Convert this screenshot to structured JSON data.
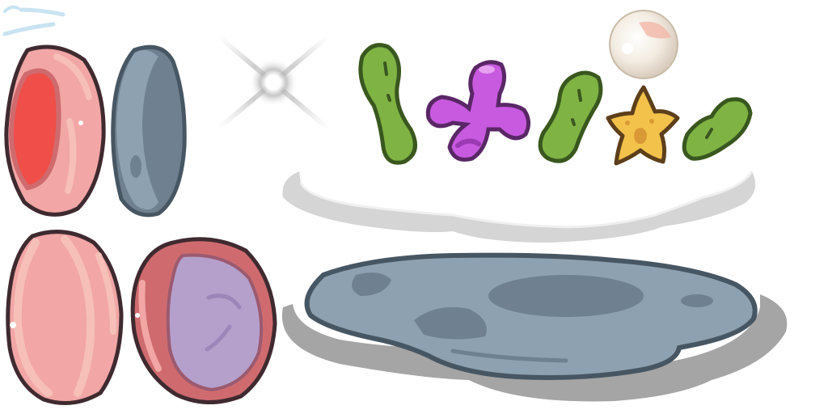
{
  "sprite_sheet": {
    "background_color": "#ffffff",
    "outline_color": "#3f2a2f",
    "palette": {
      "shell_pink": "#f2a6a6",
      "shell_pink_light": "#f6c0b8",
      "shell_pink_dark": "#cf6b6f",
      "shell_inner_red": "#f04e48",
      "shell_inner_lavender": "#b5a0cc",
      "stone_gray": "#8da1b0",
      "stone_gray_dark": "#6f8190",
      "stone_outline": "#475663",
      "kelp_green": "#7fb344",
      "kelp_outline": "#39571f",
      "coral_purple": "#c85ae0",
      "coral_outline": "#5a2766",
      "starfish_yellow": "#f3c24a",
      "starfish_outline": "#5d3f1b",
      "pearl": "#f3ece2",
      "shadow_gray": "#d5d5d5",
      "rim_light": "#f0f0f0",
      "glint": "#c9e3f1"
    },
    "sprites": [
      {
        "name": "water-glint",
        "kind": "effect"
      },
      {
        "name": "clam-shell-open-red",
        "kind": "shell"
      },
      {
        "name": "stone-disc-side",
        "kind": "stone"
      },
      {
        "name": "light-sparkle",
        "kind": "effect"
      },
      {
        "name": "kelp-strand",
        "kind": "seaweed"
      },
      {
        "name": "purple-coral",
        "kind": "coral"
      },
      {
        "name": "kelp-strand-small",
        "kind": "seaweed"
      },
      {
        "name": "yellow-starfish",
        "kind": "starfish"
      },
      {
        "name": "kelp-strand-curled",
        "kind": "seaweed"
      },
      {
        "name": "pearl",
        "kind": "pearl"
      },
      {
        "name": "platform-rim-shadow",
        "kind": "shadow"
      },
      {
        "name": "clam-shell-closed",
        "kind": "shell"
      },
      {
        "name": "clam-shell-open-lavender",
        "kind": "shell"
      },
      {
        "name": "stone-platform",
        "kind": "stone"
      },
      {
        "name": "platform-shadow",
        "kind": "shadow"
      }
    ]
  }
}
